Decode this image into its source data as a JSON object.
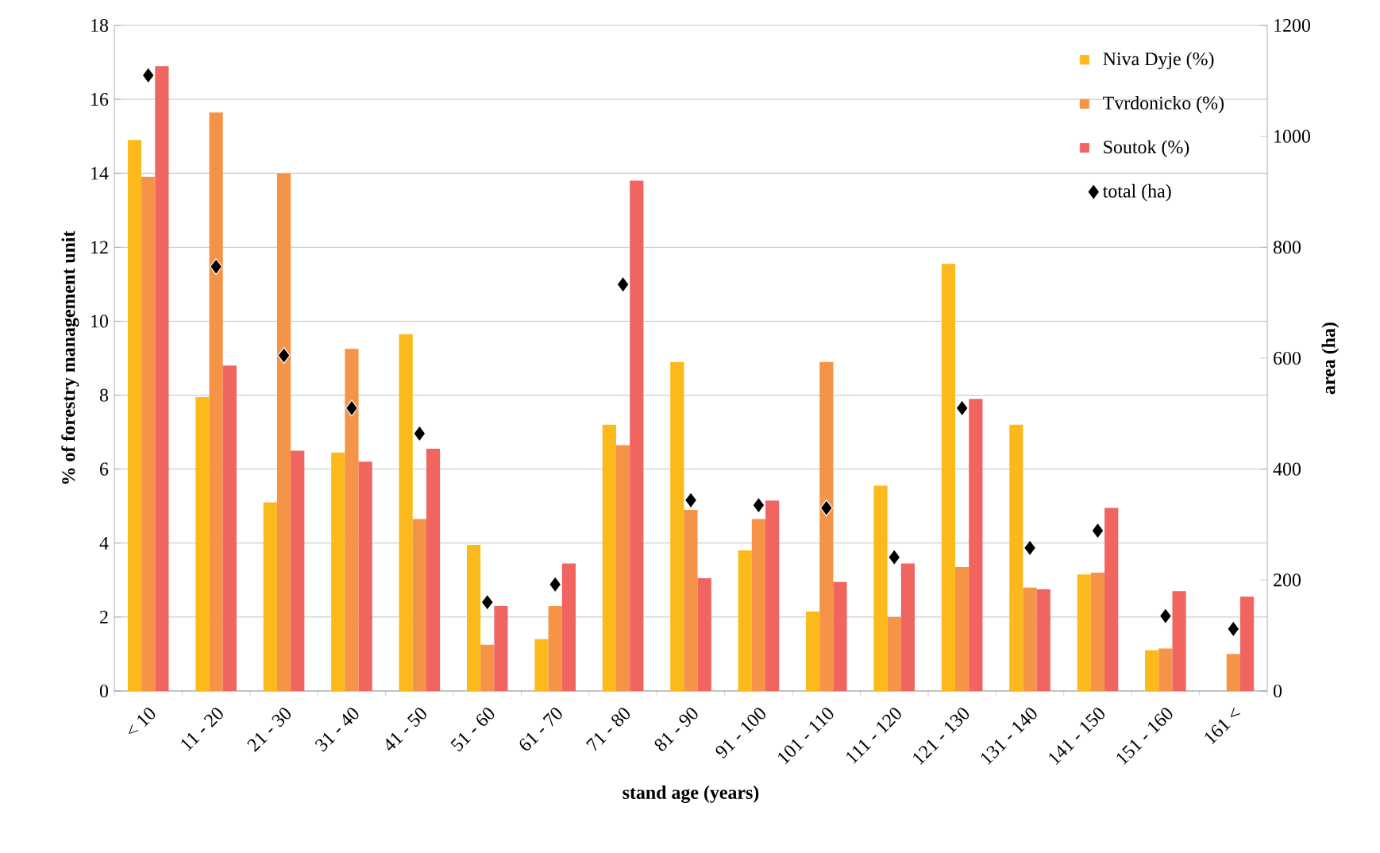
{
  "chart_data": {
    "type": "bar",
    "xlabel": "stand age (years)",
    "ylabel": "% of forestry management unit",
    "y2label": "area (ha)",
    "categories": [
      "< 10",
      "11 - 20",
      "21 - 30",
      "31 - 40",
      "41 - 50",
      "51 - 60",
      "61 - 70",
      "71 - 80",
      "81 - 90",
      "91 - 100",
      "101 - 110",
      "111 - 120",
      "121 - 130",
      "131 - 140",
      "141 - 150",
      "151 - 160",
      "161 <"
    ],
    "series": [
      {
        "name": "Niva Dyje (%)",
        "type": "bar",
        "color": "#fbb91b",
        "values": [
          14.9,
          7.95,
          5.1,
          6.45,
          9.65,
          3.95,
          1.4,
          7.2,
          8.9,
          3.8,
          2.15,
          5.55,
          11.55,
          7.2,
          3.15,
          1.1,
          null
        ]
      },
      {
        "name": "Tvrdonicko (%)",
        "color": "#f59346",
        "values": [
          13.9,
          15.65,
          14.0,
          9.25,
          4.65,
          1.25,
          2.3,
          6.65,
          4.9,
          4.65,
          8.9,
          2.0,
          3.35,
          2.8,
          3.2,
          1.15,
          1.0
        ]
      },
      {
        "name": "Soutok (%)",
        "color": "#f06560",
        "values": [
          16.9,
          8.8,
          6.5,
          6.2,
          6.55,
          2.3,
          3.45,
          13.8,
          3.05,
          5.15,
          2.95,
          3.45,
          7.9,
          2.75,
          4.95,
          2.7,
          2.55
        ]
      },
      {
        "name": "total (ha)",
        "type": "scatter",
        "axis": "y2",
        "marker": "diamond",
        "color": "#000000",
        "values": [
          1110,
          765,
          605,
          510,
          464,
          160,
          192,
          733,
          344,
          335,
          330,
          241,
          510,
          258,
          289,
          135,
          112
        ]
      }
    ],
    "ylim": [
      0,
      18
    ],
    "yticks": [
      0,
      2,
      4,
      6,
      8,
      10,
      12,
      14,
      16,
      18
    ],
    "y2lim": [
      0,
      1200
    ],
    "y2ticks": [
      0,
      200,
      400,
      600,
      800,
      1000,
      1200
    ],
    "grid": "y",
    "legend": "top right"
  }
}
